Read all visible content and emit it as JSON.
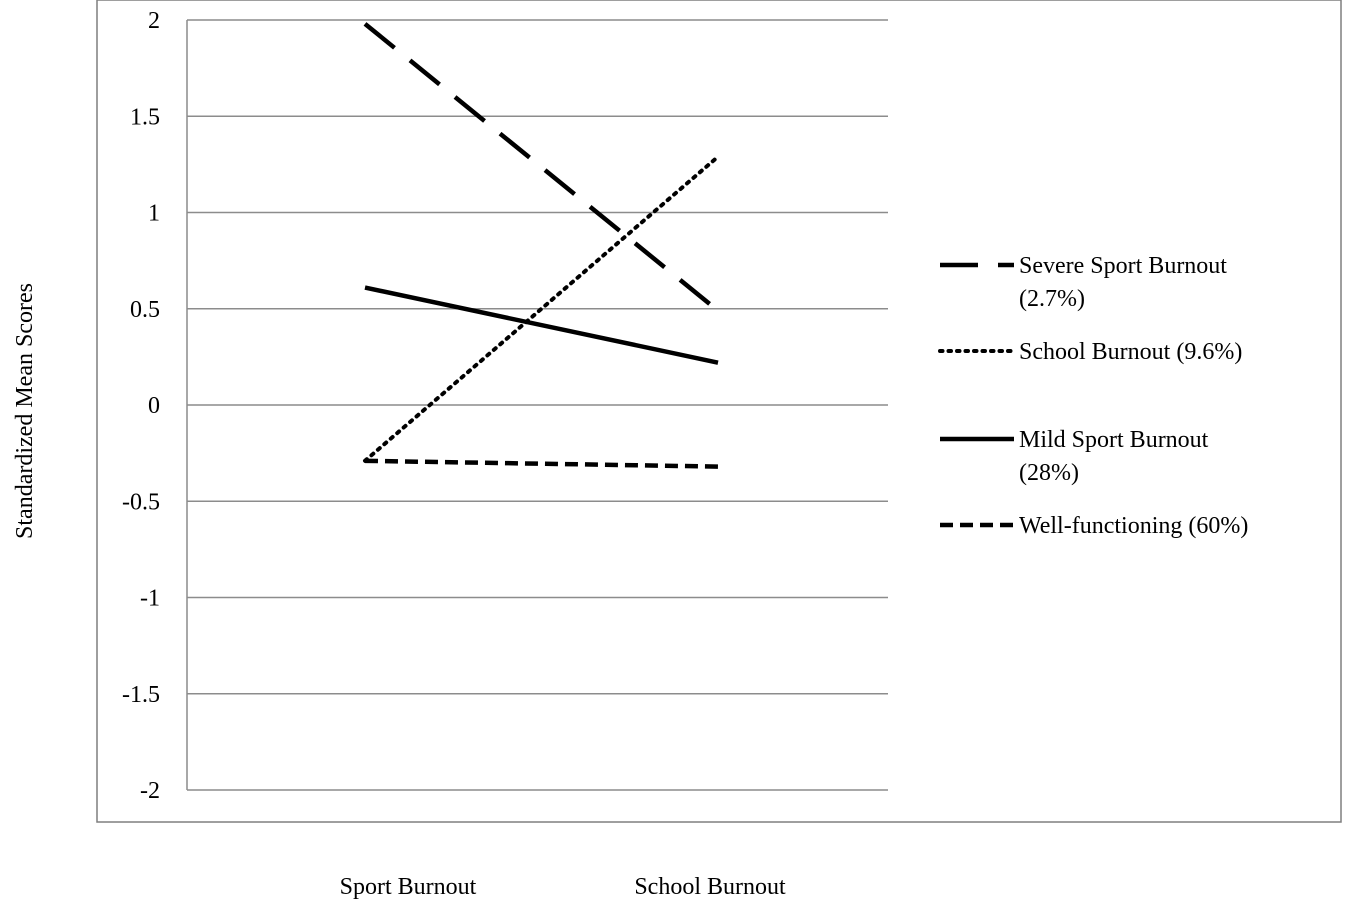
{
  "chart_data": {
    "type": "line",
    "ylabel": "Standardized Mean Scores",
    "xlabel": "",
    "categories": [
      "Sport Burnout",
      "School Burnout"
    ],
    "ylim": [
      -2,
      2
    ],
    "yticks": [
      "2",
      "1.5",
      "1",
      "0.5",
      "0",
      "-0.5",
      "-1",
      "-1.5",
      "-2"
    ],
    "grid": true,
    "legend_position": "right",
    "series": [
      {
        "name": "Severe Sport Burnout",
        "name_line2": "(2.7%)",
        "values": [
          1.98,
          0.49
        ],
        "style": "long-dash",
        "color": "#000000"
      },
      {
        "name": "School Burnout (9.6%)",
        "name_line2": "",
        "values": [
          -0.29,
          1.29
        ],
        "style": "dotted",
        "color": "#000000"
      },
      {
        "name": "Mild Sport Burnout",
        "name_line2": "(28%)",
        "values": [
          0.61,
          0.22
        ],
        "style": "solid",
        "color": "#000000"
      },
      {
        "name": "Well-functioning (60%)",
        "name_line2": "",
        "values": [
          -0.29,
          -0.32
        ],
        "style": "short-dash",
        "color": "#000000"
      }
    ]
  }
}
